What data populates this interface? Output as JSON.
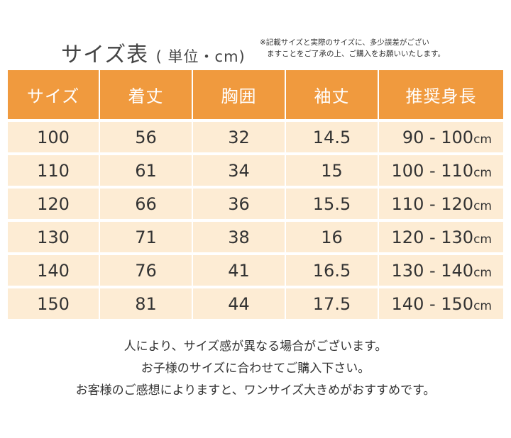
{
  "title": {
    "main": "サイズ表",
    "unit": "( 単位・cm)"
  },
  "note": {
    "line1": "※記載サイズと実際のサイズに、多少誤差がござい",
    "line2": "ますことをご了承の上、ご購入をお願いいたします。"
  },
  "table": {
    "headers": [
      "サイズ",
      "着丈",
      "胸囲",
      "袖丈",
      "推奨身長"
    ],
    "unit_suffix": "cm",
    "rows": [
      [
        "100",
        "56",
        "32",
        "14.5",
        "90 - 100"
      ],
      [
        "110",
        "61",
        "34",
        "15",
        "100 - 110"
      ],
      [
        "120",
        "66",
        "36",
        "15.5",
        "110 - 120"
      ],
      [
        "130",
        "71",
        "38",
        "16",
        "120 - 130"
      ],
      [
        "140",
        "76",
        "41",
        "16.5",
        "130 - 140"
      ],
      [
        "150",
        "81",
        "44",
        "17.5",
        "140 - 150"
      ]
    ]
  },
  "footer": [
    "人により、サイズ感が異なる場合がございます。",
    "お子様のサイズに合わせてご購入下さい。",
    "お客様のご感想によりますと、ワンサイズ大きめがおすすめです。"
  ],
  "colors": {
    "header_bg": "#f09a3e",
    "row_bg": "#fdecd4"
  }
}
